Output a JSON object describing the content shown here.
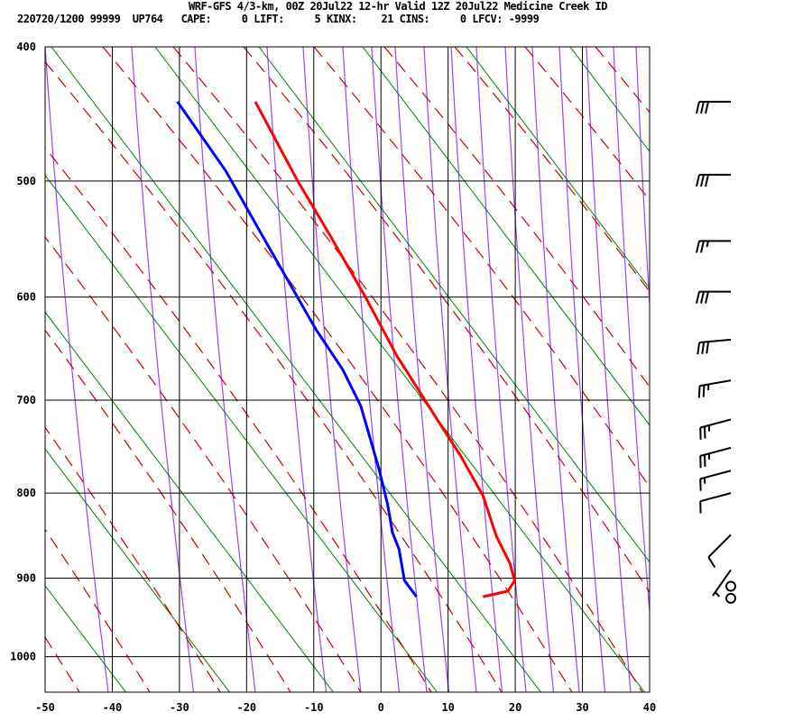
{
  "header": {
    "title": "WRF-GFS 4/3-km, 00Z 20Jul22 12-hr Valid 12Z 20Jul22 Medicine Creek ID",
    "info": "220720/1200 99999  UP764   CAPE:     0 LIFT:     5 KINX:    21 CINS:     0 LFCV: -9999"
  },
  "chart_data": {
    "type": "line",
    "subtype": "skew-t log-p sounding",
    "x_ticks": [
      -50,
      -40,
      -30,
      -20,
      -10,
      0,
      10,
      20,
      30,
      40
    ],
    "y_ticks": [
      400,
      500,
      600,
      700,
      800,
      900,
      1000
    ],
    "xlim": [
      -50,
      40
    ],
    "ylim_hpa": [
      400,
      1050
    ],
    "y_scale": "pressure (p^0.286), inverted",
    "grid": true,
    "series": [
      {
        "color": "#ff0000",
        "points": [
          [
            439,
            -18.7
          ],
          [
            500,
            -12.4
          ],
          [
            544,
            -7.7
          ],
          [
            600,
            -2.3
          ],
          [
            656,
            2.4
          ],
          [
            728,
            9.1
          ],
          [
            758,
            11.8
          ],
          [
            803,
            15.2
          ],
          [
            850,
            17.2
          ],
          [
            882,
            19.2
          ],
          [
            903,
            19.9
          ],
          [
            916,
            18.9
          ],
          [
            923,
            15.2
          ]
        ]
      },
      {
        "color": "#0000ff",
        "points": [
          [
            439,
            -30.3
          ],
          [
            492,
            -23.1
          ],
          [
            544,
            -17.8
          ],
          [
            630,
            -9.7
          ],
          [
            669,
            -5.7
          ],
          [
            706,
            -3.0
          ],
          [
            773,
            -0.3
          ],
          [
            813,
            1.0
          ],
          [
            845,
            1.7
          ],
          [
            865,
            2.7
          ],
          [
            903,
            3.5
          ],
          [
            923,
            5.3
          ]
        ]
      }
    ],
    "background_lines": {
      "grid": "#000000",
      "dry_adiabats": "#a040ff",
      "moist_adiabats": "#cc0000",
      "mixing_ratio": "#008000"
    },
    "wind_barbs": [
      {
        "pressure": 439,
        "direction": 270,
        "speed_kt": 30
      },
      {
        "pressure": 495,
        "direction": 270,
        "speed_kt": 30
      },
      {
        "pressure": 550,
        "direction": 270,
        "speed_kt": 25
      },
      {
        "pressure": 595,
        "direction": 270,
        "speed_kt": 30
      },
      {
        "pressure": 640,
        "direction": 265,
        "speed_kt": 30
      },
      {
        "pressure": 680,
        "direction": 260,
        "speed_kt": 25
      },
      {
        "pressure": 720,
        "direction": 255,
        "speed_kt": 25
      },
      {
        "pressure": 750,
        "direction": 255,
        "speed_kt": 25
      },
      {
        "pressure": 775,
        "direction": 255,
        "speed_kt": 15
      },
      {
        "pressure": 800,
        "direction": 255,
        "speed_kt": 10
      },
      {
        "pressure": 848,
        "direction": 225,
        "speed_kt": 10
      },
      {
        "pressure": 890,
        "direction": 215,
        "speed_kt": 5
      },
      {
        "pressure": 910,
        "direction": 0,
        "speed_kt": 0
      },
      {
        "pressure": 925,
        "direction": 0,
        "speed_kt": 0
      }
    ]
  }
}
